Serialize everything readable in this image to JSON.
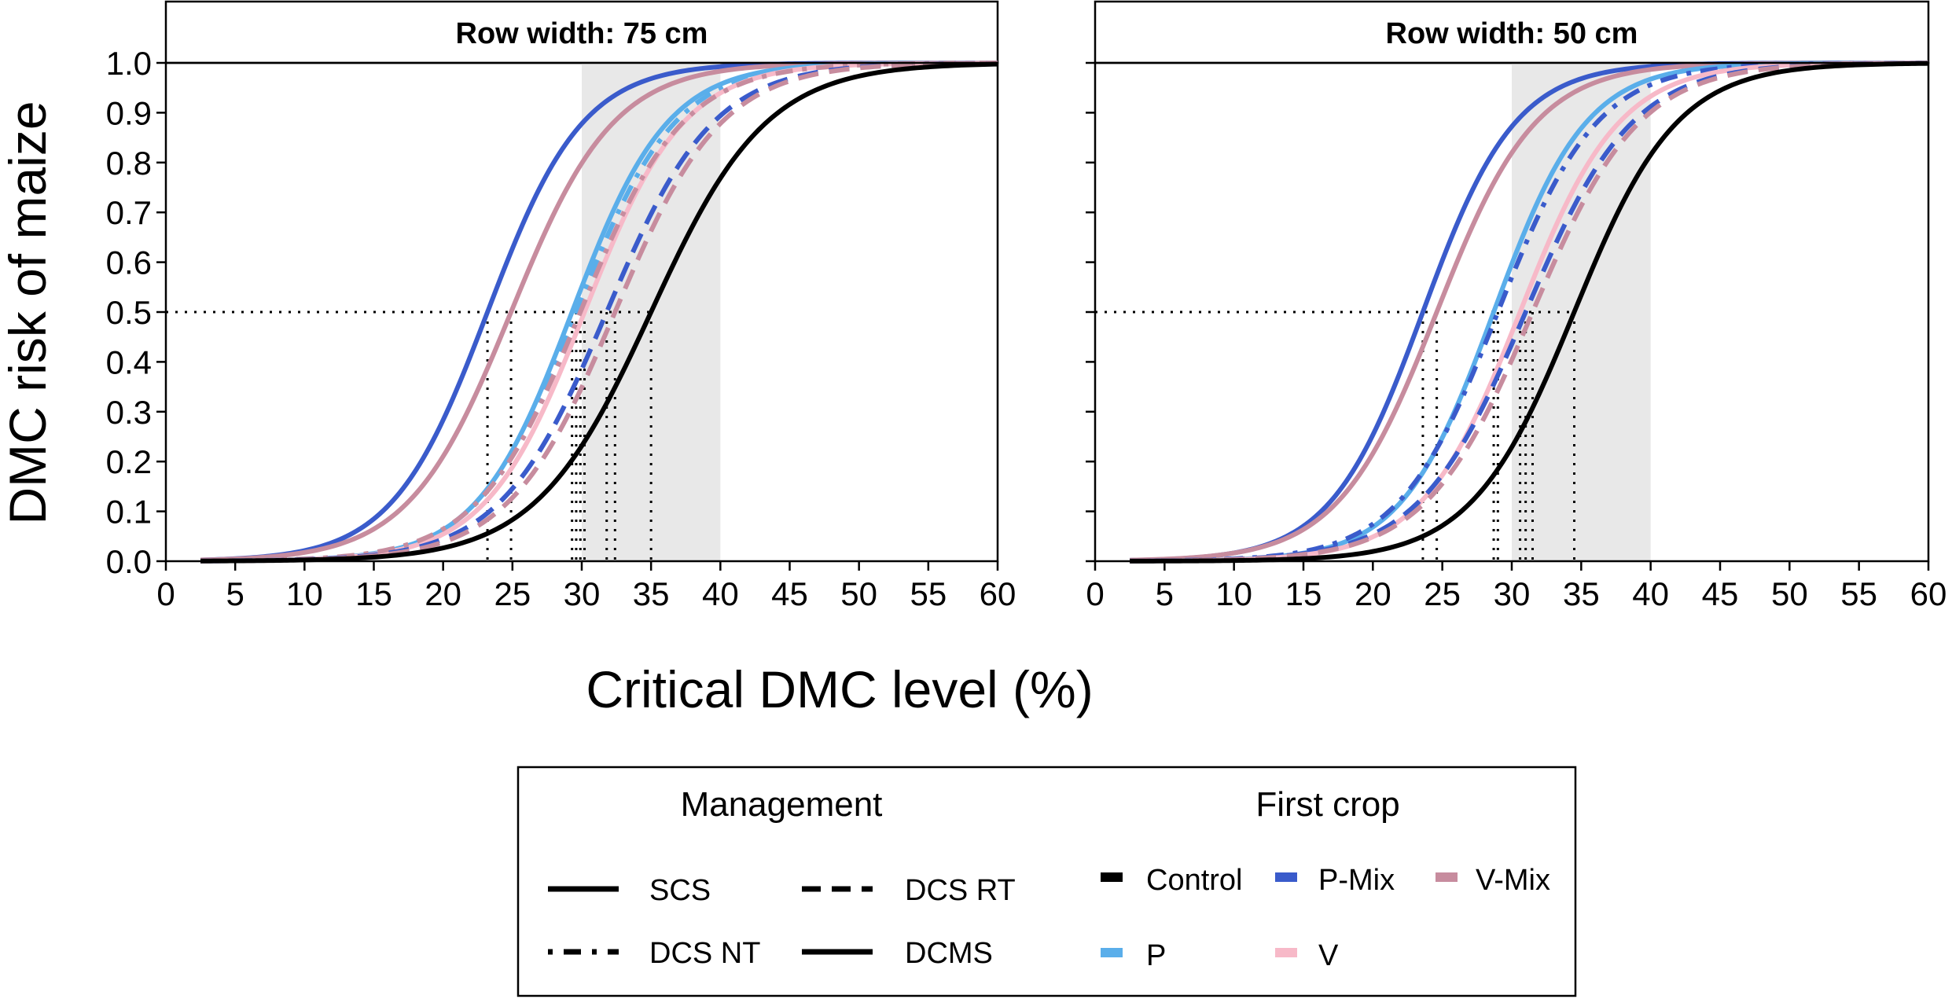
{
  "chart_data": {
    "type": "line",
    "ylabel": "DMC risk of maize",
    "xlabel": "Critical DMC level (%)",
    "xlim": [
      0,
      60
    ],
    "ylim": [
      0,
      1
    ],
    "x_ticks": [
      "0",
      "5",
      "10",
      "15",
      "20",
      "25",
      "30",
      "35",
      "40",
      "45",
      "50",
      "55",
      "60"
    ],
    "y_ticks": [
      "0.0",
      "0.1",
      "0.2",
      "0.3",
      "0.4",
      "0.5",
      "0.6",
      "0.7",
      "0.8",
      "0.9",
      "1.0"
    ],
    "shaded_range": [
      30,
      40
    ],
    "reference_probability": 0.5,
    "colors": {
      "Control": "#000000",
      "P-Mix": "#3a5bcb",
      "V-Mix": "#c78c9e",
      "P": "#5aaeea",
      "V": "#f7b9c8",
      "shade": "#e8e8e8"
    },
    "panels": [
      {
        "title": "Row width: 75 cm",
        "series": [
          {
            "crop": "P-Mix",
            "management": "SCS",
            "midpoint": 23.2,
            "slope": 0.29
          },
          {
            "crop": "V-Mix",
            "management": "SCS",
            "midpoint": 24.9,
            "slope": 0.27
          },
          {
            "crop": "P",
            "management": "SCS",
            "midpoint": 29.3,
            "slope": 0.29
          },
          {
            "crop": "P",
            "management": "DCS NT",
            "midpoint": 29.6,
            "slope": 0.28
          },
          {
            "crop": "V",
            "management": "SCS",
            "midpoint": 30.2,
            "slope": 0.28
          },
          {
            "crop": "V-Mix",
            "management": "DCS NT",
            "midpoint": 29.9,
            "slope": 0.27
          },
          {
            "crop": "P-Mix",
            "management": "DCS RT",
            "midpoint": 31.8,
            "slope": 0.26
          },
          {
            "crop": "V-Mix",
            "management": "DCS RT",
            "midpoint": 32.4,
            "slope": 0.26
          },
          {
            "crop": "Control",
            "management": "SCS",
            "midpoint": 35.0,
            "slope": 0.24
          }
        ]
      },
      {
        "title": "Row width: 50 cm",
        "series": [
          {
            "crop": "P-Mix",
            "management": "SCS",
            "midpoint": 23.6,
            "slope": 0.3
          },
          {
            "crop": "V-Mix",
            "management": "SCS",
            "midpoint": 24.6,
            "slope": 0.28
          },
          {
            "crop": "P",
            "management": "SCS",
            "midpoint": 28.7,
            "slope": 0.3
          },
          {
            "crop": "P-Mix",
            "management": "DCS NT",
            "midpoint": 29.0,
            "slope": 0.28
          },
          {
            "crop": "V",
            "management": "SCS",
            "midpoint": 30.6,
            "slope": 0.28
          },
          {
            "crop": "P-Mix",
            "management": "DCS RT",
            "midpoint": 31.0,
            "slope": 0.26
          },
          {
            "crop": "V-Mix",
            "management": "DCS RT",
            "midpoint": 31.5,
            "slope": 0.26
          },
          {
            "crop": "Control",
            "management": "SCS",
            "midpoint": 34.5,
            "slope": 0.27
          }
        ]
      }
    ],
    "legend": {
      "management_title": "Management",
      "crop_title": "First crop",
      "management": [
        {
          "label": "SCS",
          "style": "solid"
        },
        {
          "label": "DCS RT",
          "style": "dashed"
        },
        {
          "label": "DCS NT",
          "style": "dotdash"
        },
        {
          "label": "DCMS",
          "style": "solid"
        }
      ],
      "crops": [
        {
          "label": "Control",
          "key": "Control"
        },
        {
          "label": "P-Mix",
          "key": "P-Mix"
        },
        {
          "label": "V-Mix",
          "key": "V-Mix"
        },
        {
          "label": "P",
          "key": "P"
        },
        {
          "label": "V",
          "key": "V"
        }
      ]
    }
  }
}
